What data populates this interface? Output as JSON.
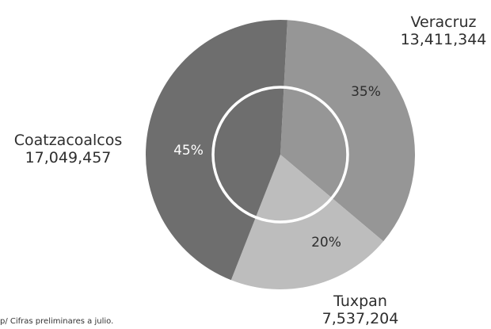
{
  "chart_data": {
    "type": "pie",
    "categories": [
      "Veracruz",
      "Tuxpan",
      "Coatzacoalcos"
    ],
    "values": [
      13411344,
      7537204,
      17049457
    ],
    "value_labels": [
      "13,411,344",
      "7,537,204",
      "17,049,457"
    ],
    "percent_labels": [
      "35%",
      "20%",
      "45%"
    ],
    "colors": [
      "#969696",
      "#bdbdbd",
      "#6e6e6e"
    ],
    "percent_label_colors": [
      "#2e2e2e",
      "#2e2e2e",
      "#ffffff"
    ],
    "inner_ring": true,
    "legend": "none"
  },
  "footnote": "p/ Cifras preliminares a julio."
}
